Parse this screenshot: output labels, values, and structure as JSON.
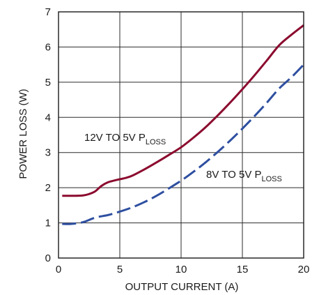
{
  "chart_data": {
    "type": "line",
    "title": "",
    "xlabel": "OUTPUT CURRENT (A)",
    "ylabel": "POWER LOSS (W)",
    "xlim": [
      0,
      20
    ],
    "ylim": [
      0,
      7
    ],
    "x_ticks": [
      0,
      5,
      10,
      15,
      20
    ],
    "y_ticks": [
      0,
      1,
      2,
      3,
      4,
      5,
      6,
      7
    ],
    "x_tick_labels": [
      "0",
      "5",
      "10",
      "15",
      "20"
    ],
    "y_tick_labels": [
      "0",
      "1",
      "2",
      "3",
      "4",
      "5",
      "6",
      "7"
    ],
    "grid": true,
    "series": [
      {
        "name": "12V TO 5V PLOSS",
        "label_main": "12V TO 5V P",
        "label_sub": "LOSS",
        "color": "#8b0a2e",
        "style": "solid",
        "x": [
          0.3,
          1,
          2,
          2.5,
          3,
          3.5,
          4,
          4.5,
          5,
          5.5,
          6,
          7,
          8,
          9,
          10,
          11,
          12,
          13,
          14,
          15,
          16,
          17,
          18,
          19,
          20
        ],
        "y": [
          1.77,
          1.77,
          1.78,
          1.82,
          1.9,
          2.05,
          2.15,
          2.2,
          2.24,
          2.28,
          2.34,
          2.52,
          2.72,
          2.93,
          3.15,
          3.42,
          3.72,
          4.06,
          4.42,
          4.8,
          5.2,
          5.62,
          6.05,
          6.35,
          6.62
        ]
      },
      {
        "name": "8V TO 5V PLOSS",
        "label_main": "8V TO 5V P",
        "label_sub": "LOSS",
        "color": "#2e4fa0",
        "style": "dashed",
        "x": [
          0.3,
          1,
          2,
          3,
          4,
          5,
          6,
          7,
          8,
          9,
          10,
          11,
          12,
          13,
          14,
          15,
          16,
          17,
          18,
          19,
          20
        ],
        "y": [
          0.97,
          0.97,
          1.02,
          1.15,
          1.22,
          1.32,
          1.44,
          1.59,
          1.77,
          1.98,
          2.2,
          2.45,
          2.72,
          3.02,
          3.34,
          3.68,
          4.04,
          4.42,
          4.82,
          5.14,
          5.5
        ]
      }
    ]
  }
}
